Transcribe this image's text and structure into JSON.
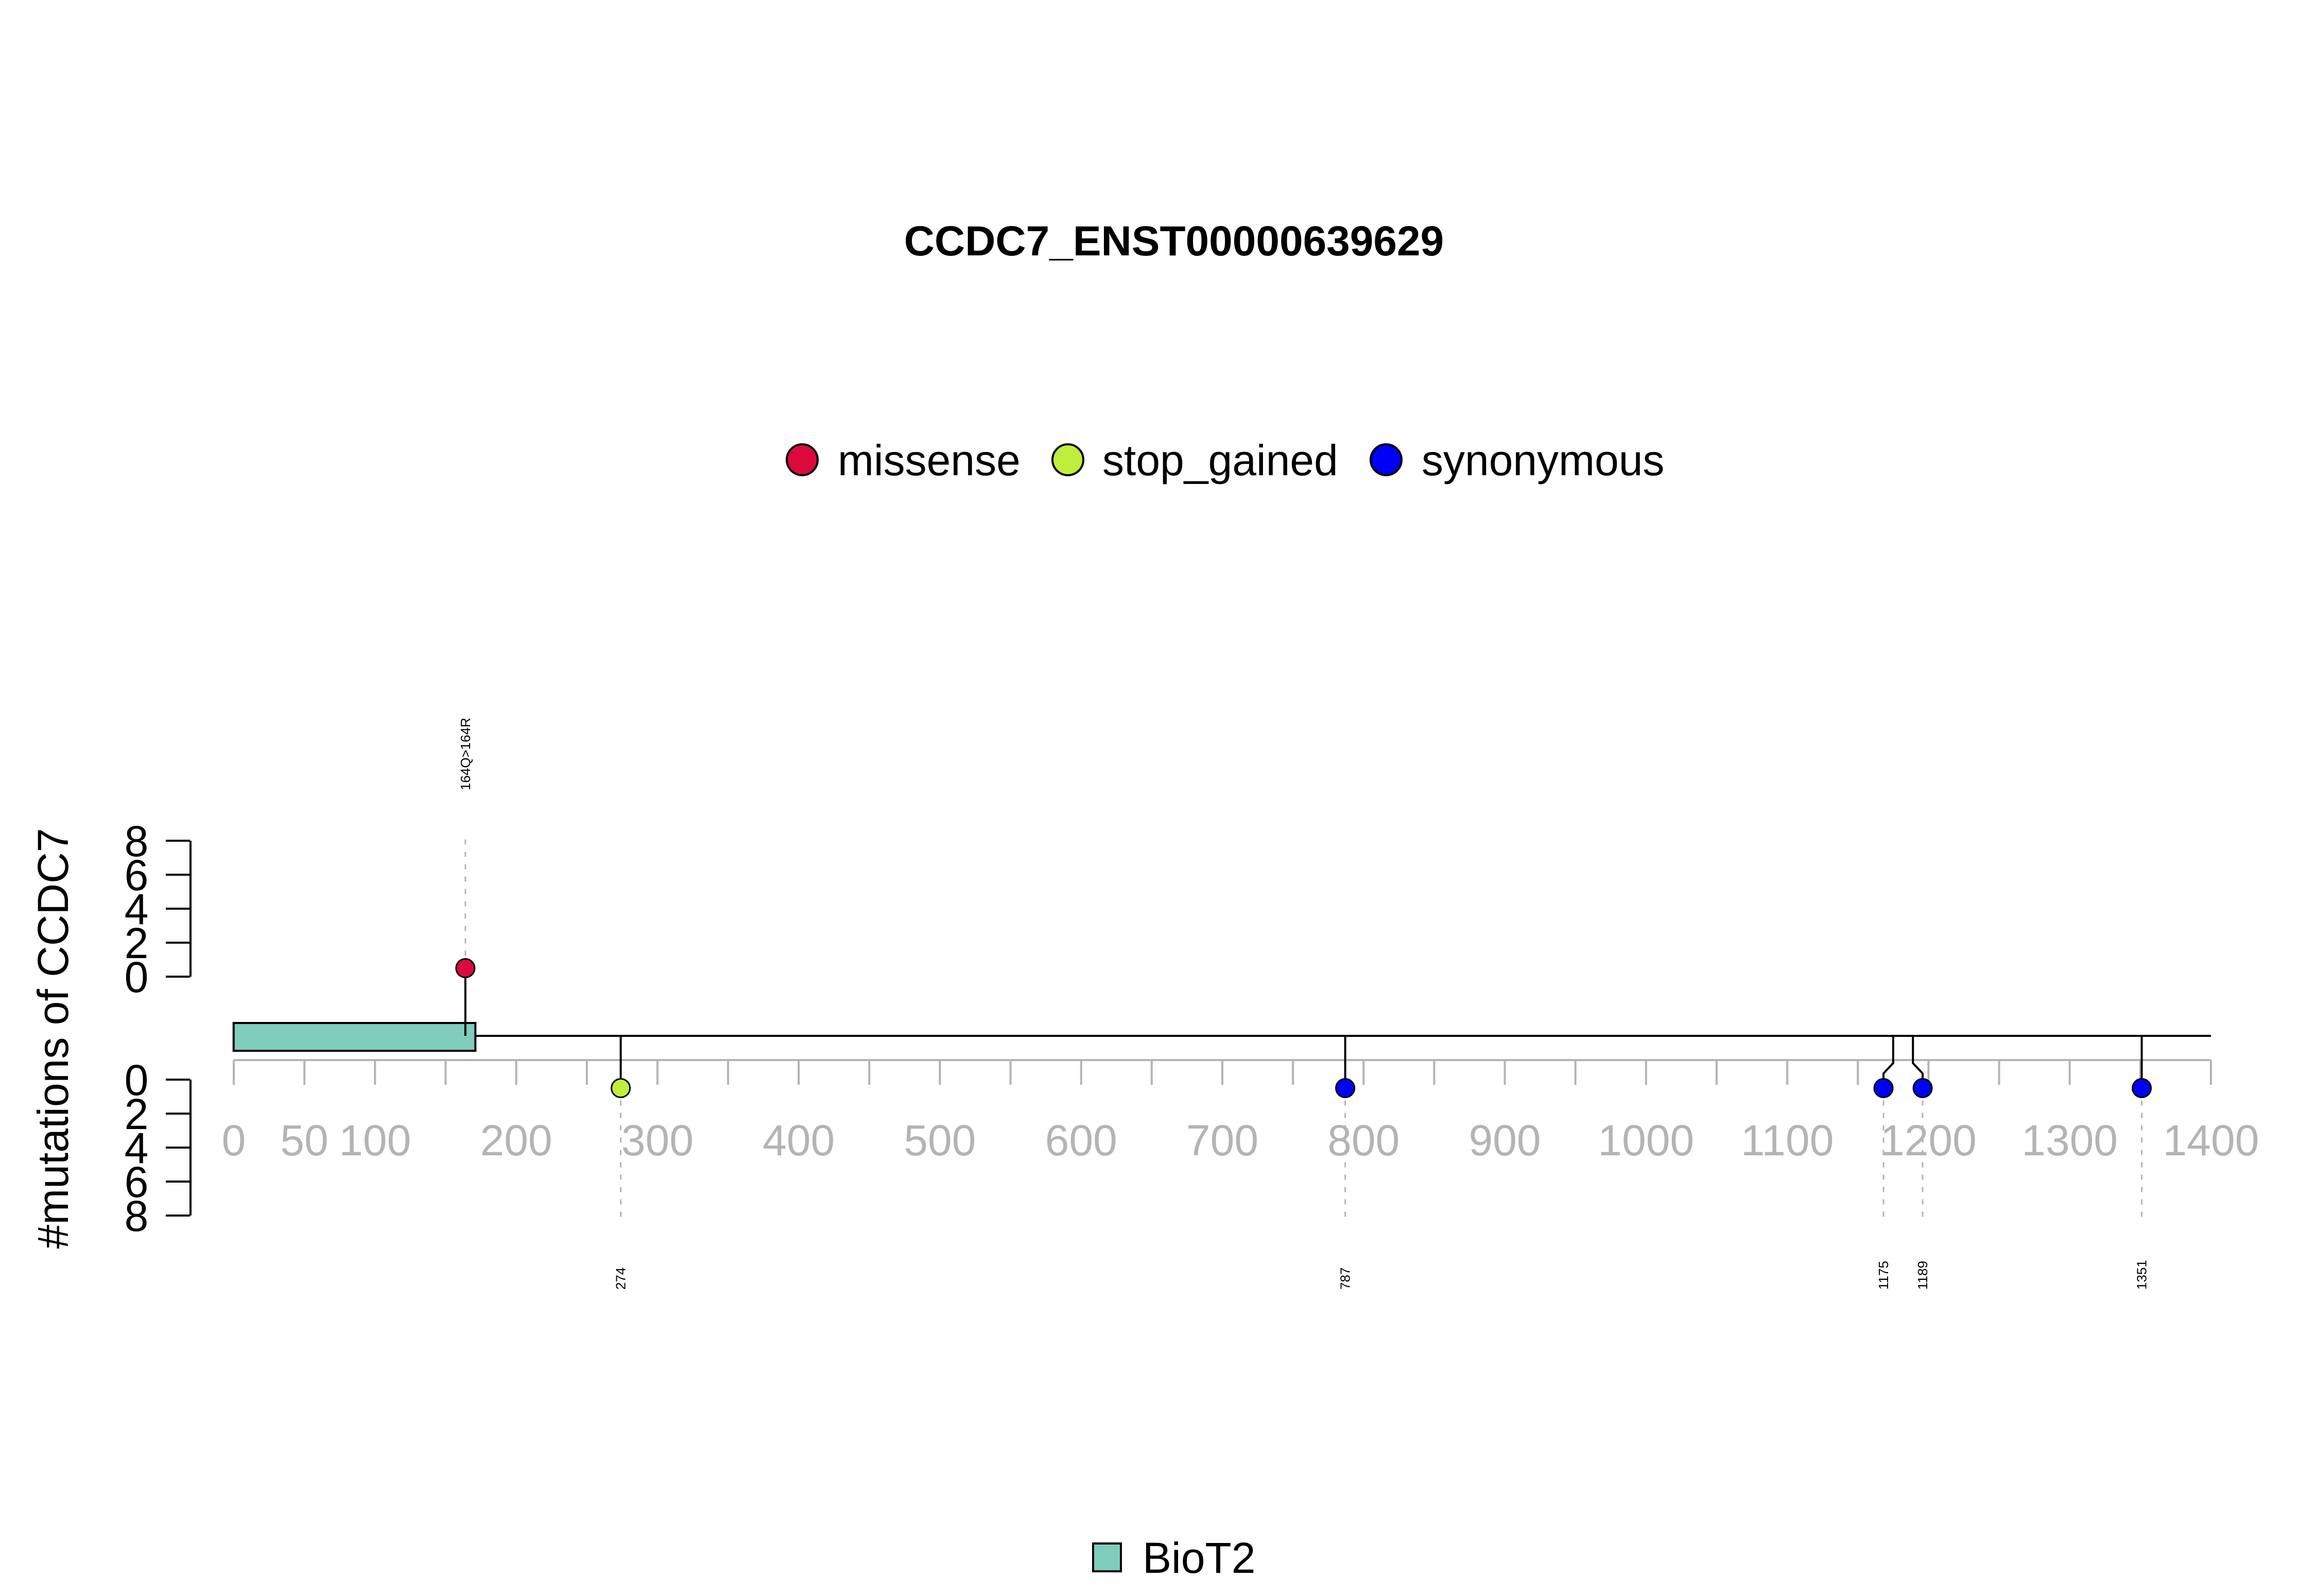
{
  "chart_data": {
    "type": "lollipop",
    "title": "CCDC7_ENST00000639629",
    "ylabel": "#mutations of CCDC7",
    "xlim": [
      0,
      1400
    ],
    "x_ticks": [
      0,
      50,
      100,
      200,
      300,
      400,
      500,
      600,
      700,
      800,
      900,
      1000,
      1100,
      1200,
      1300,
      1400
    ],
    "x_minor_ticks": [
      0,
      50,
      100,
      150,
      200,
      250,
      300,
      350,
      400,
      450,
      500,
      550,
      600,
      650,
      700,
      750,
      800,
      850,
      900,
      950,
      1000,
      1050,
      1100,
      1150,
      1200,
      1250,
      1300,
      1350,
      1400
    ],
    "y_ticks": [
      0,
      2,
      4,
      6,
      8
    ],
    "ylim": [
      0,
      8
    ],
    "grid": false,
    "legend_position": "top",
    "mutation_types": [
      {
        "name": "missense",
        "color": "#dc0a3c"
      },
      {
        "name": "stop_gained",
        "color": "#c0ee3c"
      },
      {
        "name": "synonymous",
        "color": "#0000f5"
      }
    ],
    "protein_length": 1400,
    "domains": [
      {
        "name": "BioT2",
        "start": 1,
        "end": 170,
        "color": "#7fcdbb"
      }
    ],
    "mutations": [
      {
        "position": 164,
        "count": 1,
        "type": "missense",
        "strand": "up",
        "label": "164Q>164R"
      },
      {
        "position": 274,
        "count": 1,
        "type": "stop_gained",
        "strand": "down",
        "label": "274"
      },
      {
        "position": 787,
        "count": 1,
        "type": "synonymous",
        "strand": "down",
        "label": "787"
      },
      {
        "position": 1175,
        "count": 1,
        "type": "synonymous",
        "strand": "down",
        "label": "1175"
      },
      {
        "position": 1189,
        "count": 1,
        "type": "synonymous",
        "strand": "down",
        "label": "1189"
      },
      {
        "position": 1351,
        "count": 1,
        "type": "synonymous",
        "strand": "down",
        "label": "1351"
      }
    ]
  }
}
